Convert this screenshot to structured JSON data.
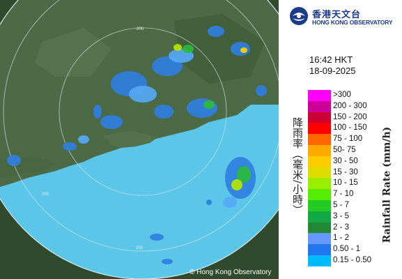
{
  "logo": {
    "name_cn": "香港天文台",
    "name_en": "HONG KONG OBSERVATORY"
  },
  "timestamp": {
    "time": "16:42 HKT",
    "date": "18-09-2025"
  },
  "legend": {
    "title_cn": "降雨率（毫米/小時）",
    "title_en": "Rainfall Rate (mm/h)",
    "bands": [
      {
        "label": ">300",
        "color": "#ff00ff"
      },
      {
        "label": "200 - 300",
        "color": "#cc0099"
      },
      {
        "label": "150 - 200",
        "color": "#cc0033"
      },
      {
        "label": "100 - 150",
        "color": "#ff0000"
      },
      {
        "label": "75 - 100",
        "color": "#ff6600"
      },
      {
        "label": "50- 75",
        "color": "#ffaa00"
      },
      {
        "label": "30 - 50",
        "color": "#ffcc00"
      },
      {
        "label": "15 - 30",
        "color": "#dddd00"
      },
      {
        "label": "10 - 15",
        "color": "#99ee00"
      },
      {
        "label": "7 - 10",
        "color": "#55ee00"
      },
      {
        "label": "5 - 7",
        "color": "#22cc22"
      },
      {
        "label": "3 - 5",
        "color": "#11aa44"
      },
      {
        "label": "2 - 3",
        "color": "#228833"
      },
      {
        "label": "1 - 2",
        "color": "#6699ff"
      },
      {
        "label": "0.50 - 1",
        "color": "#2277ee"
      },
      {
        "label": "0.15 - 0.50",
        "color": "#00bbff"
      }
    ]
  },
  "map": {
    "range_labels": [
      "200",
      "200",
      "200"
    ],
    "sea_color": "#5bc6e8",
    "land_color": "#4c6a45",
    "outside_color": "#2f4a2c"
  },
  "copyright": "© Hong Kong Observatory"
}
